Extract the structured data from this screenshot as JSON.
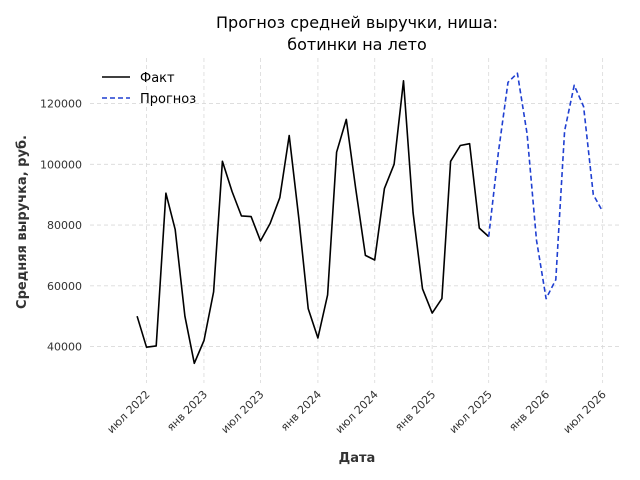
{
  "chart_data": {
    "type": "line",
    "title_line1": "Прогноз средней выручки, ниша:",
    "title_line2": "ботинки на лето",
    "xlabel": "Дата",
    "ylabel": "Средняя выручка, руб.",
    "xlim": [
      "2022-01-01",
      "2026-09-01"
    ],
    "ylim": [
      28000,
      135000
    ],
    "grid": true,
    "legend_position": "top-left",
    "x_ticks": [
      {
        "date": "2022-07-01",
        "label": "июл 2022"
      },
      {
        "date": "2023-01-01",
        "label": "янв 2023"
      },
      {
        "date": "2023-07-01",
        "label": "июл 2023"
      },
      {
        "date": "2024-01-01",
        "label": "янв 2024"
      },
      {
        "date": "2024-07-01",
        "label": "июл 2024"
      },
      {
        "date": "2025-01-01",
        "label": "янв 2025"
      },
      {
        "date": "2025-07-01",
        "label": "июл 2025"
      },
      {
        "date": "2026-01-01",
        "label": "янв 2026"
      },
      {
        "date": "2026-07-01",
        "label": "июл 2026"
      }
    ],
    "y_ticks": [
      {
        "value": 40000,
        "label": "40000"
      },
      {
        "value": 60000,
        "label": "60000"
      },
      {
        "value": 80000,
        "label": "80000"
      },
      {
        "value": 100000,
        "label": "100000"
      },
      {
        "value": 120000,
        "label": "120000"
      }
    ],
    "series": [
      {
        "name": "Факт",
        "color": "#000000",
        "style": "solid",
        "points": [
          [
            "2022-06-01",
            50000
          ],
          [
            "2022-07-01",
            39800
          ],
          [
            "2022-08-01",
            40200
          ],
          [
            "2022-09-01",
            90500
          ],
          [
            "2022-10-01",
            78500
          ],
          [
            "2022-11-01",
            50000
          ],
          [
            "2022-12-01",
            34500
          ],
          [
            "2023-01-01",
            42000
          ],
          [
            "2023-02-01",
            58000
          ],
          [
            "2023-03-01",
            101000
          ],
          [
            "2023-04-01",
            91000
          ],
          [
            "2023-05-01",
            83000
          ],
          [
            "2023-06-01",
            82800
          ],
          [
            "2023-07-01",
            74800
          ],
          [
            "2023-08-01",
            80500
          ],
          [
            "2023-09-01",
            89000
          ],
          [
            "2023-10-01",
            109500
          ],
          [
            "2023-11-01",
            82000
          ],
          [
            "2023-12-01",
            52500
          ],
          [
            "2024-01-01",
            42800
          ],
          [
            "2024-02-01",
            57000
          ],
          [
            "2024-03-01",
            104000
          ],
          [
            "2024-04-01",
            114800
          ],
          [
            "2024-05-01",
            92000
          ],
          [
            "2024-06-01",
            70000
          ],
          [
            "2024-07-01",
            68500
          ],
          [
            "2024-08-01",
            92000
          ],
          [
            "2024-09-01",
            100000
          ],
          [
            "2024-10-01",
            127500
          ],
          [
            "2024-11-01",
            84000
          ],
          [
            "2024-12-01",
            59000
          ],
          [
            "2025-01-01",
            51000
          ],
          [
            "2025-02-01",
            55800
          ],
          [
            "2025-03-01",
            101000
          ],
          [
            "2025-04-01",
            106200
          ],
          [
            "2025-05-01",
            106800
          ],
          [
            "2025-06-01",
            79000
          ],
          [
            "2025-07-01",
            76200
          ]
        ]
      },
      {
        "name": "Прогноз",
        "color": "#1f3fd1",
        "style": "dashed",
        "points": [
          [
            "2025-07-01",
            76200
          ],
          [
            "2025-08-01",
            104000
          ],
          [
            "2025-09-01",
            127000
          ],
          [
            "2025-10-01",
            130000
          ],
          [
            "2025-11-01",
            110000
          ],
          [
            "2025-12-01",
            75000
          ],
          [
            "2026-01-01",
            55800
          ],
          [
            "2026-02-01",
            62000
          ],
          [
            "2026-03-01",
            111000
          ],
          [
            "2026-04-01",
            126000
          ],
          [
            "2026-05-01",
            119000
          ],
          [
            "2026-06-01",
            90000
          ],
          [
            "2026-07-01",
            84500
          ]
        ]
      }
    ]
  }
}
